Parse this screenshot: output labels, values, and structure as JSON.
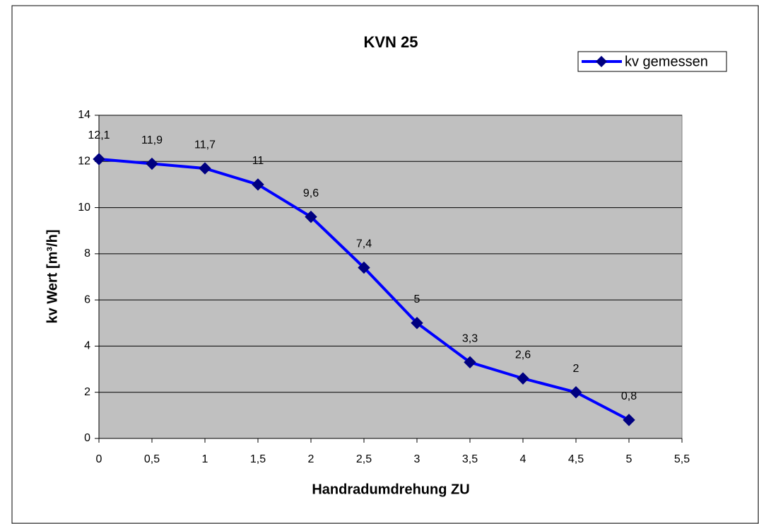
{
  "chart_data": {
    "type": "line",
    "title": "KVN 25",
    "x_label": "Handradumdrehung ZU",
    "y_label": "kv Wert [m³/h]",
    "x": [
      0,
      0.5,
      1,
      1.5,
      2,
      2.5,
      3,
      3.5,
      4,
      4.5,
      5
    ],
    "series": [
      {
        "name": "kv gemessen",
        "color": "#0000ff",
        "marker_color": "#000080",
        "values": [
          12.1,
          11.9,
          11.7,
          11,
          9.6,
          7.4,
          5,
          3.3,
          2.6,
          2,
          0.8
        ],
        "value_labels": [
          "12,1",
          "11,9",
          "11,7",
          "11",
          "9,6",
          "7,4",
          "5",
          "3,3",
          "2,6",
          "2",
          "0,8"
        ]
      }
    ],
    "xlim": [
      0,
      5.5
    ],
    "xticks": [
      0,
      {
        "value": 0.5,
        "label": "0,5"
      },
      1,
      {
        "value": 1.5,
        "label": "1,5"
      },
      2,
      {
        "value": 2.5,
        "label": "2,5"
      },
      3,
      {
        "value": 3.5,
        "label": "3,5"
      },
      4,
      {
        "value": 4.5,
        "label": "4,5"
      },
      5,
      {
        "value": 5.5,
        "label": "5,5"
      }
    ],
    "ylim": [
      0,
      14
    ],
    "yticks": [
      0,
      2,
      4,
      6,
      8,
      10,
      12,
      14
    ],
    "grid": true,
    "legend": "top-right",
    "plot_background": "#c0c0c0"
  }
}
